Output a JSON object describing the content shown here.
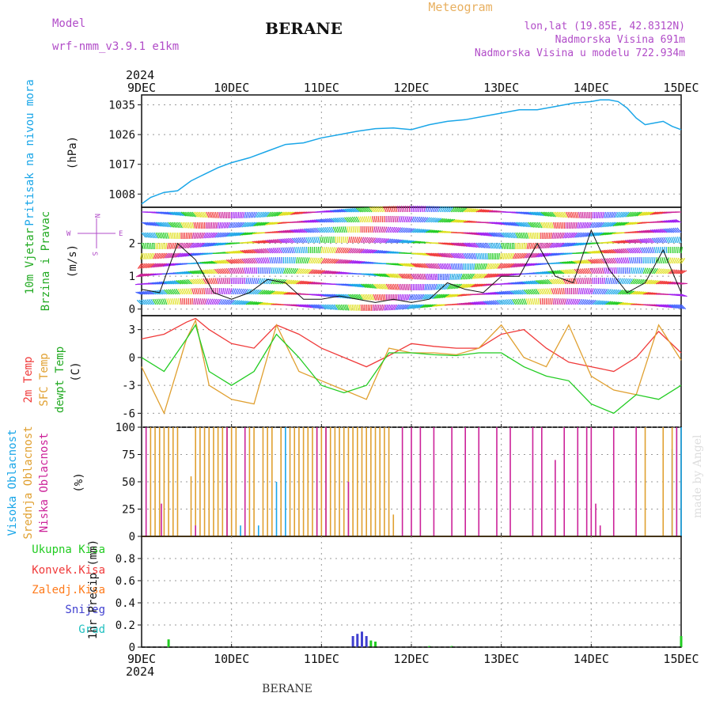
{
  "header": {
    "model_label": "Model",
    "model_name": "wrf-nmm_v3.9.1  e1km",
    "station": "BERANE",
    "meteogram": "Meteogram",
    "lonlat": "lon,lat (19.85E, 42.8312N)",
    "elevation": "Nadmorska Visina 691m",
    "model_elevation": "Nadmorska Visina u modelu 722.934m",
    "footer_station": "BERANE",
    "watermark": "made by Angel"
  },
  "time_axis": {
    "year": "2024",
    "labels": [
      "9DEC",
      "10DEC",
      "11DEC",
      "12DEC",
      "13DEC",
      "14DEC",
      "15DEC"
    ]
  },
  "colors": {
    "pressure": "#1aa6e8",
    "temp2m": "#f03a3a",
    "sfc": "#e0a030",
    "dew": "#22cc22",
    "high_cloud": "#1aa6e8",
    "mid_cloud": "#e0a030",
    "low_cloud": "#cc2299",
    "total_precip": "#22cc22",
    "conv_precip": "#f03a3a",
    "frozen_precip": "#ff7a1a",
    "snow": "#4040d0",
    "graupel": "#20c0c0",
    "header_purple": "#b14cc8",
    "meteogram_orange": "#e8b060"
  },
  "chart_data": [
    {
      "type": "line",
      "panel": "pressure",
      "ylabel": [
        "Pritisak na nivou mora",
        "(hPa)"
      ],
      "ylim": [
        1004,
        1038
      ],
      "yticks": [
        1008,
        1017,
        1026,
        1035
      ],
      "x_days": [
        0,
        0.1,
        0.25,
        0.4,
        0.55,
        0.7,
        0.85,
        1.0,
        1.2,
        1.4,
        1.6,
        1.8,
        2.0,
        2.2,
        2.4,
        2.6,
        2.8,
        3.0,
        3.2,
        3.4,
        3.6,
        3.8,
        4.0,
        4.2,
        4.4,
        4.6,
        4.8,
        5.0,
        5.1,
        5.2,
        5.3,
        5.4,
        5.5,
        5.6,
        5.7,
        5.8,
        5.9,
        6.0
      ],
      "values": [
        1005,
        1007,
        1008.5,
        1009,
        1012,
        1014,
        1016,
        1017.5,
        1019,
        1021,
        1023,
        1023.5,
        1025,
        1026,
        1027,
        1027.8,
        1028,
        1027.5,
        1029,
        1030,
        1030.5,
        1031.5,
        1032.5,
        1033.5,
        1033.5,
        1034.5,
        1035.5,
        1036,
        1036.5,
        1036.5,
        1036,
        1034,
        1031,
        1029,
        1029.5,
        1030,
        1028.5,
        1027.5
      ],
      "series_name": "pressure",
      "grid": true
    },
    {
      "type": "line",
      "panel": "wind",
      "ylabel": [
        "10m Vjetar",
        "Brzina i Pravac",
        "(m/s)"
      ],
      "ylim": [
        -0.2,
        3.1
      ],
      "yticks": [
        0,
        1,
        2
      ],
      "compass": [
        "N",
        "E",
        "W",
        "S"
      ],
      "x_days": [
        0,
        0.2,
        0.4,
        0.6,
        0.8,
        1.0,
        1.2,
        1.4,
        1.6,
        1.8,
        2.0,
        2.2,
        2.4,
        2.6,
        2.8,
        3.0,
        3.2,
        3.4,
        3.6,
        3.8,
        4.0,
        4.2,
        4.4,
        4.6,
        4.8,
        5.0,
        5.2,
        5.4,
        5.6,
        5.8,
        6.0
      ],
      "values": [
        0.6,
        0.5,
        2.0,
        1.5,
        0.5,
        0.3,
        0.5,
        0.9,
        0.8,
        0.3,
        0.3,
        0.4,
        0.3,
        0.2,
        0.3,
        0.2,
        0.3,
        0.8,
        0.6,
        0.5,
        1.0,
        1.0,
        2.0,
        1.0,
        0.8,
        2.4,
        1.2,
        0.5,
        0.8,
        1.8,
        0.5
      ],
      "grid": true
    },
    {
      "type": "line",
      "panel": "temperature",
      "ylabel": [
        "2m Temp",
        "SFC Temp",
        "dewpt Temp",
        "(C)"
      ],
      "ylim": [
        -7.5,
        4.5
      ],
      "yticks": [
        -6,
        -3,
        0,
        3
      ],
      "x_days": [
        0,
        0.25,
        0.5,
        0.6,
        0.75,
        1.0,
        1.25,
        1.5,
        1.75,
        2.0,
        2.25,
        2.5,
        2.75,
        3.0,
        3.25,
        3.5,
        3.75,
        4.0,
        4.25,
        4.5,
        4.75,
        5.0,
        5.25,
        5.5,
        5.75,
        6.0
      ],
      "series": [
        {
          "name": "2m Temp",
          "values": [
            2,
            2.5,
            3.8,
            4.2,
            3,
            1.5,
            1.0,
            3.5,
            2.5,
            1.0,
            0,
            -1.0,
            0.2,
            1.5,
            1.2,
            1.0,
            1.0,
            2.5,
            3.0,
            1.0,
            -0.5,
            -1.0,
            -1.5,
            0,
            2.8,
            0.5
          ]
        },
        {
          "name": "SFC Temp",
          "values": [
            -1,
            -6,
            2,
            4.0,
            -3,
            -4.5,
            -5,
            3.5,
            -1.5,
            -2.5,
            -3.5,
            -4.5,
            1.0,
            0.5,
            0.5,
            0.3,
            1.0,
            3.5,
            0,
            -1.0,
            3.5,
            -2.0,
            -3.5,
            -4.0,
            3.5,
            -0.3
          ]
        },
        {
          "name": "dewpt Temp",
          "values": [
            0,
            -1.5,
            2,
            3.5,
            -1.5,
            -3,
            -1.5,
            2.5,
            0,
            -3,
            -3.8,
            -3,
            0.5,
            0.5,
            0.3,
            0.2,
            0.5,
            0.5,
            -1.0,
            -2.0,
            -2.5,
            -5.0,
            -6.0,
            -4.0,
            -4.5,
            -3.0
          ]
        }
      ],
      "grid": true
    },
    {
      "type": "bar",
      "panel": "cloud",
      "ylabel": [
        "Visoka Oblacnost",
        "Srednja Oblacnost",
        "Niska Oblacnost",
        "(%)"
      ],
      "ylim": [
        0,
        100
      ],
      "yticks": [
        0,
        25,
        50,
        75,
        100
      ],
      "series": [
        {
          "name": "Visoka Oblacnost",
          "x_days": [
            1.1,
            1.3,
            1.5,
            1.6,
            5.9,
            5.95,
            6.0
          ],
          "values": [
            10,
            10,
            50,
            100,
            80,
            100,
            100
          ]
        },
        {
          "name": "Srednja Oblacnost",
          "x_days": [
            0.1,
            0.15,
            0.2,
            0.25,
            0.3,
            0.35,
            0.4,
            0.55,
            0.6,
            0.65,
            0.7,
            0.75,
            0.8,
            0.85,
            0.9,
            0.95,
            1.0,
            1.05,
            1.2,
            1.25,
            1.35,
            1.4,
            1.45,
            1.55,
            1.65,
            1.7,
            1.75,
            1.8,
            1.85,
            1.9,
            1.95,
            2.0,
            2.05,
            2.1,
            2.15,
            2.2,
            2.25,
            2.3,
            2.35,
            2.4,
            2.45,
            2.5,
            2.55,
            2.6,
            2.65,
            2.7,
            2.75,
            2.8,
            5.6,
            5.8,
            5.9
          ],
          "values": [
            100,
            100,
            100,
            100,
            100,
            100,
            100,
            55,
            100,
            100,
            100,
            100,
            100,
            100,
            100,
            100,
            100,
            100,
            100,
            100,
            100,
            100,
            100,
            100,
            100,
            100,
            100,
            100,
            100,
            100,
            100,
            100,
            100,
            100,
            100,
            100,
            100,
            100,
            100,
            100,
            100,
            100,
            100,
            100,
            100,
            100,
            100,
            20,
            100,
            100,
            100
          ]
        },
        {
          "name": "Niska Oblacnost",
          "x_days": [
            0.05,
            0.22,
            0.6,
            0.95,
            1.15,
            1.95,
            2.05,
            2.3,
            2.9,
            3.0,
            3.1,
            3.25,
            3.45,
            3.6,
            3.75,
            3.95,
            4.1,
            4.35,
            4.45,
            4.6,
            4.7,
            4.85,
            4.95,
            5.0,
            5.05,
            5.1,
            5.25,
            5.5,
            5.95
          ],
          "values": [
            100,
            30,
            10,
            100,
            100,
            100,
            100,
            50,
            100,
            100,
            100,
            100,
            100,
            100,
            100,
            100,
            100,
            100,
            100,
            70,
            100,
            100,
            100,
            100,
            30,
            10,
            100,
            100,
            100
          ]
        }
      ],
      "grid": true
    },
    {
      "type": "bar",
      "panel": "precip",
      "ylabel": [
        "1hr Precip (mm)"
      ],
      "legend": [
        "Ukupna Kisa",
        "Konvek.Kisa",
        "Zaledj.Kisa",
        "Snijeg",
        "Grad"
      ],
      "ylim": [
        0,
        1.0
      ],
      "yticks": [
        0,
        0.2,
        0.4,
        0.6,
        0.8
      ],
      "x_days": [
        0.3,
        2.35,
        2.4,
        2.45,
        2.5,
        2.55,
        2.6,
        3.2,
        3.45,
        6.0
      ],
      "values": [
        0.07,
        0.1,
        0.12,
        0.14,
        0.1,
        0.06,
        0.05,
        0.01,
        0.01,
        0.1
      ],
      "grid": true
    }
  ]
}
